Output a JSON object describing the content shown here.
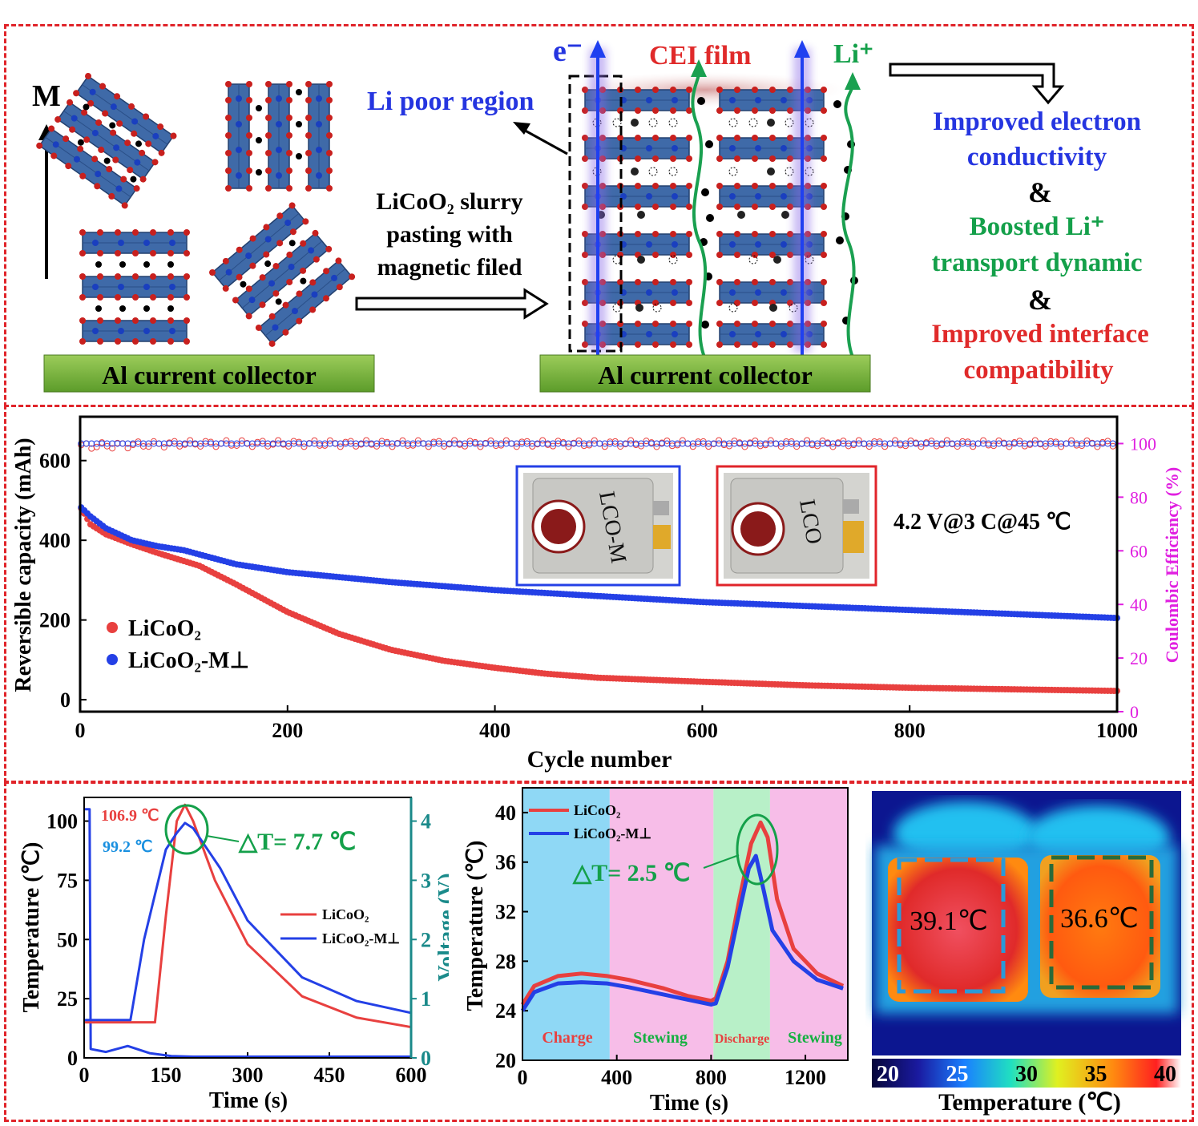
{
  "colors": {
    "red": "#e8403f",
    "blue": "#2440e6",
    "green": "#14a04a",
    "magenta": "#e020e0",
    "teal": "#1a8a8a",
    "panel_border": "#e0242a"
  },
  "top": {
    "axis_label": "M",
    "collector_left": "Al current collector",
    "collector_right": "Al current collector",
    "process_line1": "LiCoO₂ slurry",
    "process_line2": "pasting with",
    "process_line3": "magnetic filed",
    "li_poor": "Li poor region",
    "electron": "e⁻",
    "cei": "CEI film",
    "lithium": "Li⁺",
    "benefit1a": "Improved electron",
    "benefit1b": "conductivity",
    "amp1": "&",
    "benefit2a": "Boosted Li⁺",
    "benefit2b": "transport dynamic",
    "amp2": "&",
    "benefit3a": "Improved interface",
    "benefit3b": "compatibility"
  },
  "middle": {
    "condition": "4.2 V@3 C@45 ℃",
    "photo_left_label": "LCO-M",
    "photo_right_label": "LCO"
  },
  "chart_data": [
    {
      "type": "scatter",
      "title": "",
      "xlabel": "Cycle number",
      "ylabel": "Reversible capacity (mAh)",
      "y2label": "Coulombic Efficiency (%)",
      "xlim": [
        0,
        1000
      ],
      "ylim": [
        -30,
        710
      ],
      "y2lim": [
        0,
        110
      ],
      "xticks": [
        0,
        200,
        400,
        600,
        800,
        1000
      ],
      "yticks": [
        0,
        200,
        400,
        600
      ],
      "y2ticks": [
        0,
        20,
        40,
        60,
        80,
        100
      ],
      "series": [
        {
          "name": "LiCoO₂",
          "axis": "left",
          "x": [
            0,
            10,
            25,
            50,
            75,
            100,
            115,
            150,
            200,
            250,
            300,
            350,
            400,
            450,
            500,
            600,
            700,
            800,
            900,
            1000
          ],
          "values": [
            485,
            440,
            415,
            390,
            368,
            348,
            336,
            290,
            220,
            165,
            125,
            98,
            80,
            65,
            55,
            45,
            36,
            30,
            26,
            22
          ]
        },
        {
          "name": "LiCoO₂-M⊥",
          "axis": "left",
          "x": [
            0,
            10,
            25,
            50,
            75,
            100,
            150,
            200,
            300,
            400,
            500,
            600,
            700,
            800,
            900,
            1000
          ],
          "values": [
            485,
            460,
            430,
            400,
            385,
            375,
            340,
            320,
            295,
            275,
            260,
            245,
            235,
            225,
            215,
            205
          ]
        },
        {
          "name": "LiCoO₂ CE",
          "axis": "right",
          "x": [
            0,
            100,
            200,
            300,
            400,
            500,
            600,
            700,
            800,
            900,
            1000
          ],
          "values": [
            99,
            100,
            100,
            100,
            100,
            100,
            100,
            100,
            100,
            100,
            100
          ]
        },
        {
          "name": "LiCoO₂-M⊥ CE",
          "axis": "right",
          "x": [
            0,
            100,
            200,
            300,
            400,
            500,
            600,
            700,
            800,
            900,
            1000
          ],
          "values": [
            100,
            100,
            100,
            100,
            100,
            100,
            100,
            100,
            100,
            100,
            100
          ]
        }
      ]
    },
    {
      "type": "line",
      "title": "",
      "xlabel": "Time (s)",
      "ylabel": "Temperature (℃)",
      "y2label": "Voltage (V)",
      "xlim": [
        0,
        600
      ],
      "ylim": [
        0,
        110
      ],
      "y2lim": [
        0,
        4.4
      ],
      "xticks": [
        0,
        150,
        300,
        450,
        600
      ],
      "yticks": [
        0,
        25,
        50,
        75,
        100
      ],
      "y2ticks": [
        0,
        1,
        2,
        3,
        4
      ],
      "series": [
        {
          "name": "LiCoO₂",
          "axis": "left",
          "x": [
            0,
            60,
            130,
            150,
            170,
            185,
            200,
            240,
            300,
            400,
            500,
            600
          ],
          "values": [
            15,
            15,
            15,
            60,
            100,
            106.9,
            100,
            75,
            48,
            26,
            17,
            13
          ]
        },
        {
          "name": "LiCoO₂-M⊥",
          "axis": "left",
          "x": [
            0,
            60,
            85,
            110,
            150,
            170,
            185,
            200,
            250,
            300,
            400,
            500,
            600
          ],
          "values": [
            16,
            16,
            16,
            50,
            88,
            95,
            99.2,
            97,
            80,
            58,
            34,
            24,
            19
          ]
        },
        {
          "name": "Voltage",
          "axis": "right",
          "x": [
            0,
            10,
            12,
            40,
            80,
            120,
            160,
            200,
            600
          ],
          "values": [
            4.2,
            4.2,
            0.15,
            0.1,
            0.2,
            0.08,
            0.03,
            0.02,
            0.02
          ]
        }
      ],
      "annotations": [
        "106.9 ℃",
        "99.2 ℃",
        "△T= 7.7 ℃"
      ]
    },
    {
      "type": "line",
      "title": "",
      "xlabel": "Time (s)",
      "ylabel": "Temperature (℃)",
      "xlim": [
        0,
        1380
      ],
      "ylim": [
        20,
        42
      ],
      "xticks": [
        0,
        400,
        800,
        1200
      ],
      "yticks": [
        20,
        24,
        28,
        32,
        36,
        40
      ],
      "regions": [
        "Charge",
        "Stewing",
        "Discharge",
        "Stewing"
      ],
      "series": [
        {
          "name": "LiCoO₂",
          "x": [
            0,
            50,
            150,
            250,
            360,
            450,
            600,
            700,
            800,
            820,
            870,
            920,
            970,
            1010,
            1040,
            1080,
            1150,
            1250,
            1360
          ],
          "values": [
            24.5,
            26,
            26.8,
            27,
            26.8,
            26.5,
            25.8,
            25.2,
            24.8,
            25,
            28,
            33,
            37.5,
            39.2,
            38,
            33,
            29,
            27,
            26
          ]
        },
        {
          "name": "LiCoO₂-M⊥",
          "x": [
            0,
            50,
            150,
            250,
            360,
            450,
            600,
            700,
            800,
            820,
            870,
            920,
            960,
            990,
            1020,
            1060,
            1150,
            1250,
            1360
          ],
          "values": [
            24,
            25.5,
            26.2,
            26.3,
            26.2,
            25.9,
            25.3,
            24.9,
            24.5,
            24.6,
            27.5,
            32,
            35.5,
            36.5,
            34,
            30.5,
            28,
            26.5,
            25.8
          ]
        }
      ],
      "annotations": [
        "△T= 2.5 ℃"
      ]
    },
    {
      "type": "heatmap",
      "xlabel": "Temperature (℃)",
      "colorbar_ticks": [
        20,
        25,
        30,
        35,
        40
      ],
      "labels": [
        "39.1℃",
        "36.6℃"
      ]
    }
  ]
}
